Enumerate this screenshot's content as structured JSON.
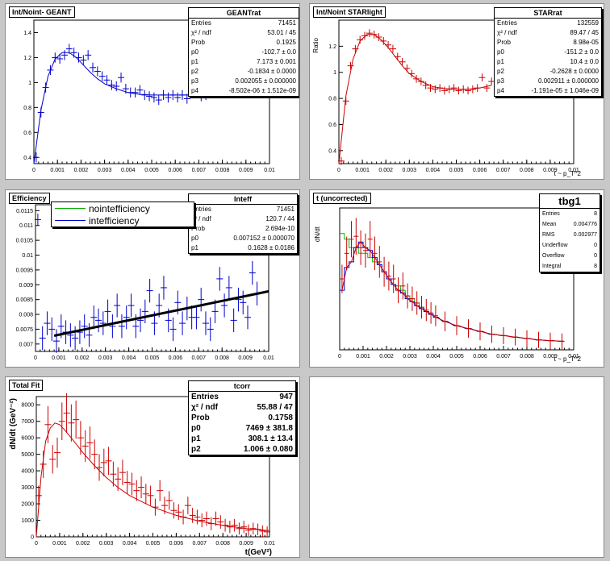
{
  "pads": [
    {
      "id": "p1",
      "title": "Int/Noint- GEANT",
      "ylabel": "",
      "xlabel": "",
      "color": "#0000cc",
      "stats": {
        "title": "GEANTrat",
        "rows": [
          [
            "Entries",
            "71451"
          ],
          [
            "χ² / ndf",
            "53.01 / 45"
          ],
          [
            "Prob",
            "0.1925"
          ],
          [
            "p0",
            "-102.7 ± 0.0"
          ],
          [
            "p1",
            "7.173 ± 0.001"
          ],
          [
            "p2",
            "-0.1834 ± 0.0000"
          ],
          [
            "p3",
            "0.002055 ± 0.000000"
          ],
          [
            "p4",
            "-8.502e-06 ± 1.512e-09"
          ]
        ]
      },
      "xticks": [
        "0",
        "0.001",
        "0.002",
        "0.003",
        "0.004",
        "0.005",
        "0.006",
        "0.007",
        "0.008",
        "0.009",
        "0.01"
      ],
      "yticks": [
        "0.4",
        "0.6",
        "0.8",
        "1",
        "1.2",
        "1.4"
      ]
    },
    {
      "id": "p2",
      "title": "Int/Noint STARlight",
      "ylabel": "Ratio",
      "xlabel": "t ~ p_T^2",
      "color": "#cc0000",
      "stats": {
        "title": "STARrat",
        "rows": [
          [
            "Entries",
            "132559"
          ],
          [
            "χ² / ndf",
            "89.47 / 45"
          ],
          [
            "Prob",
            "8.98e-05"
          ],
          [
            "p0",
            "-151.2 ± 0.0"
          ],
          [
            "p1",
            "10.4 ± 0.0"
          ],
          [
            "p2",
            "-0.2628 ± 0.0000"
          ],
          [
            "p3",
            "0.002911 ± 0.000000"
          ],
          [
            "p4",
            "-1.191e-05 ± 1.046e-09"
          ]
        ]
      },
      "xticks": [
        "0",
        "0.001",
        "0.002",
        "0.003",
        "0.004",
        "0.005",
        "0.006",
        "0.007",
        "0.008",
        "0.009",
        "0.01"
      ],
      "yticks": [
        "0.4",
        "0.6",
        "0.8",
        "1",
        "1.2"
      ]
    },
    {
      "id": "p3",
      "title": "Efficiency",
      "ylabel": "",
      "xlabel": "",
      "color": "#0000cc",
      "stats": {
        "title": "Inteff",
        "rows": [
          [
            "Entries",
            "71451"
          ],
          [
            "χ² / ndf",
            "120.7 / 44"
          ],
          [
            "Prob",
            "2.694e-10"
          ],
          [
            "p0",
            "0.007152 ± 0.000070"
          ],
          [
            "p1",
            "0.1628 ± 0.0186"
          ]
        ]
      },
      "legend": [
        "nointefficiency",
        "intefficiency"
      ],
      "legend_colors": [
        "#00aa00",
        "#0000cc"
      ],
      "xticks": [
        "0",
        "0.001",
        "0.002",
        "0.003",
        "0.004",
        "0.005",
        "0.006",
        "0.007",
        "0.008",
        "0.009",
        "0.01"
      ],
      "yticks": [
        "0.007",
        "0.0075",
        "0.008",
        "0.0085",
        "0.009",
        "0.0095",
        "0.01",
        "0.0105",
        "0.011",
        "0.0115"
      ]
    },
    {
      "id": "p4",
      "title": "t (uncorrected)",
      "ylabel": "dN/dt",
      "xlabel": "t ~ p_T^2",
      "color": "#cc0000",
      "stats": {
        "title": "tbg1",
        "rows": [
          [
            "Entries",
            "8"
          ],
          [
            "Mean",
            "0.004776"
          ],
          [
            "RMS",
            "0.002977"
          ],
          [
            "Underflow",
            "0"
          ],
          [
            "Overflow",
            "0"
          ],
          [
            "Integral",
            "8"
          ]
        ]
      },
      "xticks": [
        "0",
        "0.001",
        "0.002",
        "0.003",
        "0.004",
        "0.005",
        "0.006",
        "0.007",
        "0.008",
        "0.009",
        "0.01"
      ],
      "yticks": []
    },
    {
      "id": "p5",
      "title": "Total Fit",
      "ylabel": "dN/dt (GeV⁻²)",
      "xlabel": "t(GeV²)",
      "color": "#cc0000",
      "stats": {
        "title": "tcorr",
        "rows": [
          [
            "Entries",
            "947"
          ],
          [
            "χ² / ndf",
            "55.88 / 47"
          ],
          [
            "Prob",
            "0.1758"
          ],
          [
            "p0",
            "7469 ± 381.8"
          ],
          [
            "p1",
            "308.1 ± 13.4"
          ],
          [
            "p2",
            "1.006 ± 0.080"
          ]
        ]
      },
      "xticks": [
        "0",
        "0.001",
        "0.002",
        "0.003",
        "0.004",
        "0.005",
        "0.006",
        "0.007",
        "0.008",
        "0.009",
        "0.01"
      ],
      "yticks": [
        "0",
        "1000",
        "2000",
        "3000",
        "4000",
        "5000",
        "6000",
        "7000",
        "8000"
      ]
    }
  ],
  "chart_data": [
    {
      "type": "scatter",
      "title": "Int/Noint- GEANT",
      "xlim": [
        0,
        0.01
      ],
      "ylim": [
        0.35,
        1.5
      ],
      "x": [
        0.0001,
        0.0003,
        0.0005,
        0.0007,
        0.0009,
        0.0011,
        0.0013,
        0.0015,
        0.0017,
        0.0019,
        0.0021,
        0.0023,
        0.0025,
        0.0027,
        0.0029,
        0.0031,
        0.0033,
        0.0035,
        0.0037,
        0.0039,
        0.0041,
        0.0043,
        0.0045,
        0.0047,
        0.0049,
        0.0051,
        0.0053,
        0.0055,
        0.0057,
        0.0059,
        0.0061,
        0.0063,
        0.0065,
        0.0067,
        0.0069,
        0.0071,
        0.0073
      ],
      "y": [
        0.4,
        0.76,
        0.96,
        1.1,
        1.2,
        1.19,
        1.22,
        1.27,
        1.24,
        1.2,
        1.18,
        1.22,
        1.12,
        1.09,
        1.05,
        1.02,
        0.98,
        0.97,
        1.04,
        0.95,
        0.92,
        0.92,
        0.94,
        0.9,
        0.89,
        0.88,
        0.86,
        0.9,
        0.88,
        0.9,
        0.88,
        0.9,
        0.87,
        1.0,
        0.92,
        0.89,
        0.9
      ],
      "fit": [
        [
          0,
          0.35
        ],
        [
          0.0003,
          0.78
        ],
        [
          0.0006,
          1.05
        ],
        [
          0.0009,
          1.19
        ],
        [
          0.0012,
          1.24
        ],
        [
          0.0015,
          1.24
        ],
        [
          0.0018,
          1.2
        ],
        [
          0.0021,
          1.14
        ],
        [
          0.0024,
          1.08
        ],
        [
          0.0027,
          1.03
        ],
        [
          0.003,
          0.99
        ],
        [
          0.0035,
          0.95
        ],
        [
          0.004,
          0.92
        ],
        [
          0.0045,
          0.905
        ],
        [
          0.005,
          0.9
        ],
        [
          0.0055,
          0.9
        ],
        [
          0.006,
          0.9
        ],
        [
          0.0065,
          0.9
        ],
        [
          0.007,
          0.9
        ],
        [
          0.0075,
          0.905
        ]
      ]
    },
    {
      "type": "scatter",
      "title": "Int/Noint STARlight",
      "ylabel": "Ratio",
      "xlabel": "t ~ p_T^2",
      "xlim": [
        0,
        0.01
      ],
      "ylim": [
        0.3,
        1.4
      ],
      "x": [
        0.0001,
        0.0003,
        0.0005,
        0.0007,
        0.0009,
        0.0011,
        0.0013,
        0.0015,
        0.0017,
        0.0019,
        0.0021,
        0.0023,
        0.0025,
        0.0027,
        0.0029,
        0.0031,
        0.0033,
        0.0035,
        0.0037,
        0.0039,
        0.0041,
        0.0043,
        0.0045,
        0.0047,
        0.0049,
        0.0051,
        0.0053,
        0.0055,
        0.0057,
        0.0059,
        0.0061,
        0.0063,
        0.0065
      ],
      "y": [
        0.32,
        0.78,
        1.05,
        1.18,
        1.25,
        1.28,
        1.3,
        1.29,
        1.27,
        1.24,
        1.21,
        1.18,
        1.12,
        1.08,
        1.03,
        0.99,
        0.95,
        0.93,
        0.9,
        0.88,
        0.87,
        0.88,
        0.86,
        0.87,
        0.88,
        0.86,
        0.87,
        0.86,
        0.87,
        0.88,
        0.96,
        0.88,
        0.93
      ],
      "fit": [
        [
          0,
          0.3
        ],
        [
          0.0003,
          0.82
        ],
        [
          0.0006,
          1.1
        ],
        [
          0.0009,
          1.24
        ],
        [
          0.0012,
          1.29
        ],
        [
          0.0015,
          1.29
        ],
        [
          0.0018,
          1.25
        ],
        [
          0.0021,
          1.19
        ],
        [
          0.0024,
          1.12
        ],
        [
          0.0027,
          1.05
        ],
        [
          0.003,
          0.99
        ],
        [
          0.0035,
          0.93
        ],
        [
          0.004,
          0.89
        ],
        [
          0.0045,
          0.875
        ],
        [
          0.005,
          0.87
        ],
        [
          0.0055,
          0.87
        ],
        [
          0.006,
          0.88
        ],
        [
          0.0065,
          0.9
        ]
      ]
    },
    {
      "type": "scatter",
      "title": "Efficiency",
      "series": [
        {
          "name": "nointefficiency",
          "values": []
        },
        {
          "name": "intefficiency",
          "values": [
            0.0112,
            0.0072,
            0.0077,
            0.0075,
            0.0071,
            0.0076,
            0.0074,
            0.0073,
            0.0072,
            0.0074,
            0.0076,
            0.0073,
            0.0079,
            0.0078,
            0.0077,
            0.0081,
            0.0076,
            0.0083,
            0.0076,
            0.0079,
            0.0083,
            0.0076,
            0.0078,
            0.0081,
            0.0088,
            0.0077,
            0.0083,
            0.0089,
            0.0078,
            0.0075,
            0.0084,
            0.0077,
            0.0082,
            0.0079,
            0.0079,
            0.0085,
            0.0077,
            0.0075,
            0.0081,
            0.0092,
            0.0083,
            0.0089,
            0.0078,
            0.0085,
            0.0084,
            0.0079,
            0.0094,
            0.0087
          ]
        }
      ],
      "x": [
        0.0001,
        0.0003,
        0.0005,
        0.0007,
        0.0009,
        0.0011,
        0.0013,
        0.0015,
        0.0017,
        0.0019,
        0.0021,
        0.0023,
        0.0025,
        0.0027,
        0.0029,
        0.0031,
        0.0033,
        0.0035,
        0.0037,
        0.0039,
        0.0041,
        0.0043,
        0.0045,
        0.0047,
        0.0049,
        0.0051,
        0.0053,
        0.0055,
        0.0057,
        0.0059,
        0.0061,
        0.0063,
        0.0065,
        0.0067,
        0.0069,
        0.0071,
        0.0073,
        0.0075,
        0.0077,
        0.0079,
        0.0081,
        0.0083,
        0.0085,
        0.0087,
        0.0089,
        0.0091,
        0.0093,
        0.0095
      ],
      "fit_line": [
        [
          0.0008,
          0.00728
        ],
        [
          0.01,
          0.00878
        ]
      ],
      "xlim": [
        0,
        0.01
      ],
      "ylim": [
        0.00675,
        0.0117
      ]
    },
    {
      "type": "line",
      "title": "t (uncorrected)",
      "ylabel": "dN/dt",
      "xlabel": "t ~ p_T^2",
      "xlim": [
        0,
        0.01
      ],
      "ylim": [
        0,
        1
      ],
      "x": [
        0.0001,
        0.0003,
        0.0005,
        0.0007,
        0.0009,
        0.0011,
        0.0013,
        0.0015,
        0.0017,
        0.0019,
        0.0021,
        0.0023,
        0.0025,
        0.0027,
        0.0029,
        0.0031,
        0.0033,
        0.0035,
        0.0037,
        0.0039,
        0.0041,
        0.0045,
        0.005,
        0.0055,
        0.006,
        0.0065,
        0.007,
        0.0075,
        0.008,
        0.0085,
        0.009,
        0.0095
      ],
      "series": [
        {
          "name": "",
          "values": [
            0.5,
            0.68,
            0.78,
            0.8,
            0.72,
            0.7,
            0.78,
            0.68,
            0.62,
            0.55,
            0.52,
            0.5,
            0.42,
            0.45,
            0.38,
            0.36,
            0.33,
            0.3,
            0.28,
            0.26,
            0.24,
            0.2,
            0.17,
            0.15,
            0.13,
            0.11,
            0.1,
            0.09,
            0.08,
            0.07,
            0.065,
            0.06
          ]
        },
        {
          "name": "",
          "values": [
            0.82,
            0.78,
            0.72,
            0.72,
            0.68,
            0.68,
            0.65,
            0.62,
            0.6,
            0.55,
            0.5,
            0.46,
            0.45,
            0.42,
            0.38,
            0.36,
            0.33,
            0.3,
            0.27,
            0.25,
            0.23,
            0.2,
            0.17,
            0.15,
            0.13,
            0.11,
            0.1,
            0.09,
            0.08,
            0.07,
            0.065,
            0.06
          ]
        },
        {
          "name": "",
          "values": [
            0.42,
            0.58,
            0.62,
            0.72,
            0.76,
            0.72,
            0.7,
            0.65,
            0.6,
            0.55,
            0.5,
            0.46,
            0.42,
            0.4,
            0.36,
            0.34,
            0.31,
            0.29,
            0.27,
            0.25,
            0.23,
            0.2,
            0.17,
            0.15,
            0.13,
            0.11,
            0.1,
            0.09,
            0.08,
            0.07,
            0.065,
            0.06
          ]
        }
      ],
      "stats": {
        "Entries": 8,
        "Mean": 0.004776,
        "RMS": 0.002977,
        "Underflow": 0,
        "Overflow": 0,
        "Integral": 8
      }
    },
    {
      "type": "scatter",
      "title": "Total Fit",
      "ylabel": "dN/dt (GeV⁻²)",
      "xlabel": "t(GeV²)",
      "xlim": [
        0,
        0.01
      ],
      "ylim": [
        0,
        8500
      ],
      "x": [
        0.0001,
        0.0003,
        0.0005,
        0.0007,
        0.0009,
        0.0011,
        0.0013,
        0.0015,
        0.0017,
        0.0019,
        0.0021,
        0.0023,
        0.0025,
        0.0027,
        0.0029,
        0.0031,
        0.0033,
        0.0035,
        0.0037,
        0.0039,
        0.0041,
        0.0043,
        0.0045,
        0.0047,
        0.0049,
        0.0051,
        0.0053,
        0.0055,
        0.0057,
        0.0059,
        0.0061,
        0.0063,
        0.0065,
        0.0067,
        0.0069,
        0.0071,
        0.0073,
        0.0075,
        0.0077,
        0.0079,
        0.0081,
        0.0083,
        0.0085,
        0.0087,
        0.0089,
        0.0091,
        0.0093,
        0.0095,
        0.0097,
        0.0099
      ],
      "y": [
        2500,
        4400,
        6800,
        4700,
        5100,
        7000,
        7500,
        6900,
        7100,
        6000,
        5500,
        5700,
        5000,
        4200,
        4500,
        4600,
        3800,
        3500,
        3900,
        3300,
        3200,
        2800,
        3000,
        2600,
        2500,
        1800,
        2800,
        1900,
        2200,
        1600,
        1500,
        1200,
        1900,
        1300,
        1200,
        1000,
        1100,
        800,
        1100,
        900,
        700,
        600,
        700,
        500,
        600,
        400,
        500,
        450,
        350,
        300
      ],
      "fit": [
        [
          0,
          0
        ],
        [
          0.0002,
          3600
        ],
        [
          0.0004,
          5800
        ],
        [
          0.0006,
          6600
        ],
        [
          0.0008,
          6900
        ],
        [
          0.001,
          6800
        ],
        [
          0.0012,
          6500
        ],
        [
          0.0015,
          6000
        ],
        [
          0.002,
          5100
        ],
        [
          0.0025,
          4300
        ],
        [
          0.003,
          3600
        ],
        [
          0.0035,
          3000
        ],
        [
          0.004,
          2500
        ],
        [
          0.005,
          1800
        ],
        [
          0.006,
          1300
        ],
        [
          0.007,
          950
        ],
        [
          0.008,
          700
        ],
        [
          0.009,
          500
        ],
        [
          0.01,
          370
        ]
      ]
    }
  ]
}
